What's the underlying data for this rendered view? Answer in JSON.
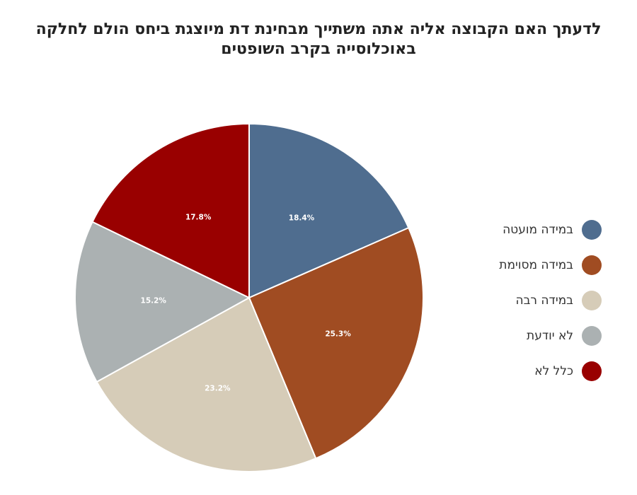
{
  "title_lines": [
    "לדעתך האם הקבוצה אליה אתה משתייך מבחינת דת מיוצגת ביחס הולם לחלקה",
    "באוכלוסייה בקרב השופטים"
  ],
  "chart_data": {
    "type": "pie",
    "title": "לדעתך האם הקבוצה אליה אתה משתייך מבחינת דת מיוצגת ביחס הולם לחלקה באוכלוסייה בקרב השופטים",
    "legend_position": "right",
    "start": "top, clockwise",
    "slices": [
      {
        "label": "במידה מועטה",
        "value": 18.4,
        "display": "18.4%",
        "color": "#4f6d8f"
      },
      {
        "label": "במידה מסוימת",
        "value": 25.3,
        "display": "25.3%",
        "color": "#a04c22"
      },
      {
        "label": "במידה רבה",
        "value": 23.2,
        "display": "23.2%",
        "color": "#d6ccb8"
      },
      {
        "label": "לא יודעת",
        "value": 15.2,
        "display": "15.2%",
        "color": "#abb1b2"
      },
      {
        "label": "כלל לא",
        "value": 17.8,
        "display": "17.8%",
        "color": "#990000"
      }
    ]
  }
}
